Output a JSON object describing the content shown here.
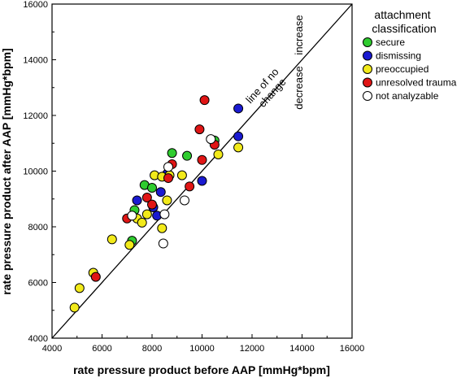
{
  "chart_data": {
    "type": "scatter",
    "xlabel": "rate pressure product before AAP [mmHg*bpm]",
    "ylabel": "rate pressure product after AAP [mmHg*bpm]",
    "xlim": [
      4000,
      16000
    ],
    "ylim": [
      4000,
      16000
    ],
    "xticks": [
      "4000",
      "6000",
      "8000",
      "10000",
      "12000",
      "14000",
      "16000"
    ],
    "yticks": [
      "4000",
      "6000",
      "8000",
      "10000",
      "12000",
      "14000",
      "16000"
    ],
    "grid": false,
    "legend": {
      "title_lines": [
        "attachment",
        "classification"
      ],
      "position": "top-right"
    },
    "annotations": {
      "line_label_lines": [
        "line of no",
        "change"
      ],
      "increase": "increase",
      "decrease": "decrease"
    },
    "reference_line": {
      "x": [
        4000,
        16000
      ],
      "y": [
        4000,
        16000
      ]
    },
    "colors": {
      "secure": "#2fcc2f",
      "dismissing": "#1a1ad1",
      "preoccupied": "#f2ea1a",
      "unresolved": "#e01515",
      "not_analyzable": "#ffffff"
    },
    "series": [
      {
        "name": "secure",
        "color": "#2fcc2f",
        "points": [
          [
            7200,
            7500
          ],
          [
            7300,
            8600
          ],
          [
            7700,
            9500
          ],
          [
            8000,
            9400
          ],
          [
            8800,
            10650
          ],
          [
            9400,
            10550
          ],
          [
            10500,
            11100
          ]
        ]
      },
      {
        "name": "dismissing",
        "color": "#1a1ad1",
        "points": [
          [
            7400,
            8950
          ],
          [
            8050,
            8700
          ],
          [
            8200,
            8400
          ],
          [
            8350,
            9250
          ],
          [
            8600,
            9900
          ],
          [
            10000,
            9650
          ],
          [
            11450,
            12250
          ],
          [
            11450,
            11250
          ]
        ]
      },
      {
        "name": "preoccupied",
        "color": "#f2ea1a",
        "points": [
          [
            4900,
            5100
          ],
          [
            5100,
            5800
          ],
          [
            5650,
            6350
          ],
          [
            6400,
            7550
          ],
          [
            7100,
            7350
          ],
          [
            7400,
            8300
          ],
          [
            7600,
            8150
          ],
          [
            7800,
            8450
          ],
          [
            8100,
            9850
          ],
          [
            8400,
            7950
          ],
          [
            8400,
            9800
          ],
          [
            8600,
            8950
          ],
          [
            8700,
            9850
          ],
          [
            9200,
            9850
          ],
          [
            10650,
            10600
          ],
          [
            11450,
            10850
          ]
        ]
      },
      {
        "name": "unresolved trauma",
        "color": "#e01515",
        "points": [
          [
            5750,
            6200
          ],
          [
            7000,
            8300
          ],
          [
            7800,
            9050
          ],
          [
            8000,
            8800
          ],
          [
            8650,
            9750
          ],
          [
            8800,
            10250
          ],
          [
            9500,
            9450
          ],
          [
            9900,
            11500
          ],
          [
            10000,
            10400
          ],
          [
            10100,
            12550
          ],
          [
            10500,
            10950
          ]
        ]
      },
      {
        "name": "not analyzable",
        "color": "#ffffff",
        "points": [
          [
            7200,
            8400
          ],
          [
            8450,
            7400
          ],
          [
            8500,
            8450
          ],
          [
            8650,
            10150
          ],
          [
            9300,
            8950
          ],
          [
            10350,
            11150
          ]
        ]
      }
    ]
  }
}
